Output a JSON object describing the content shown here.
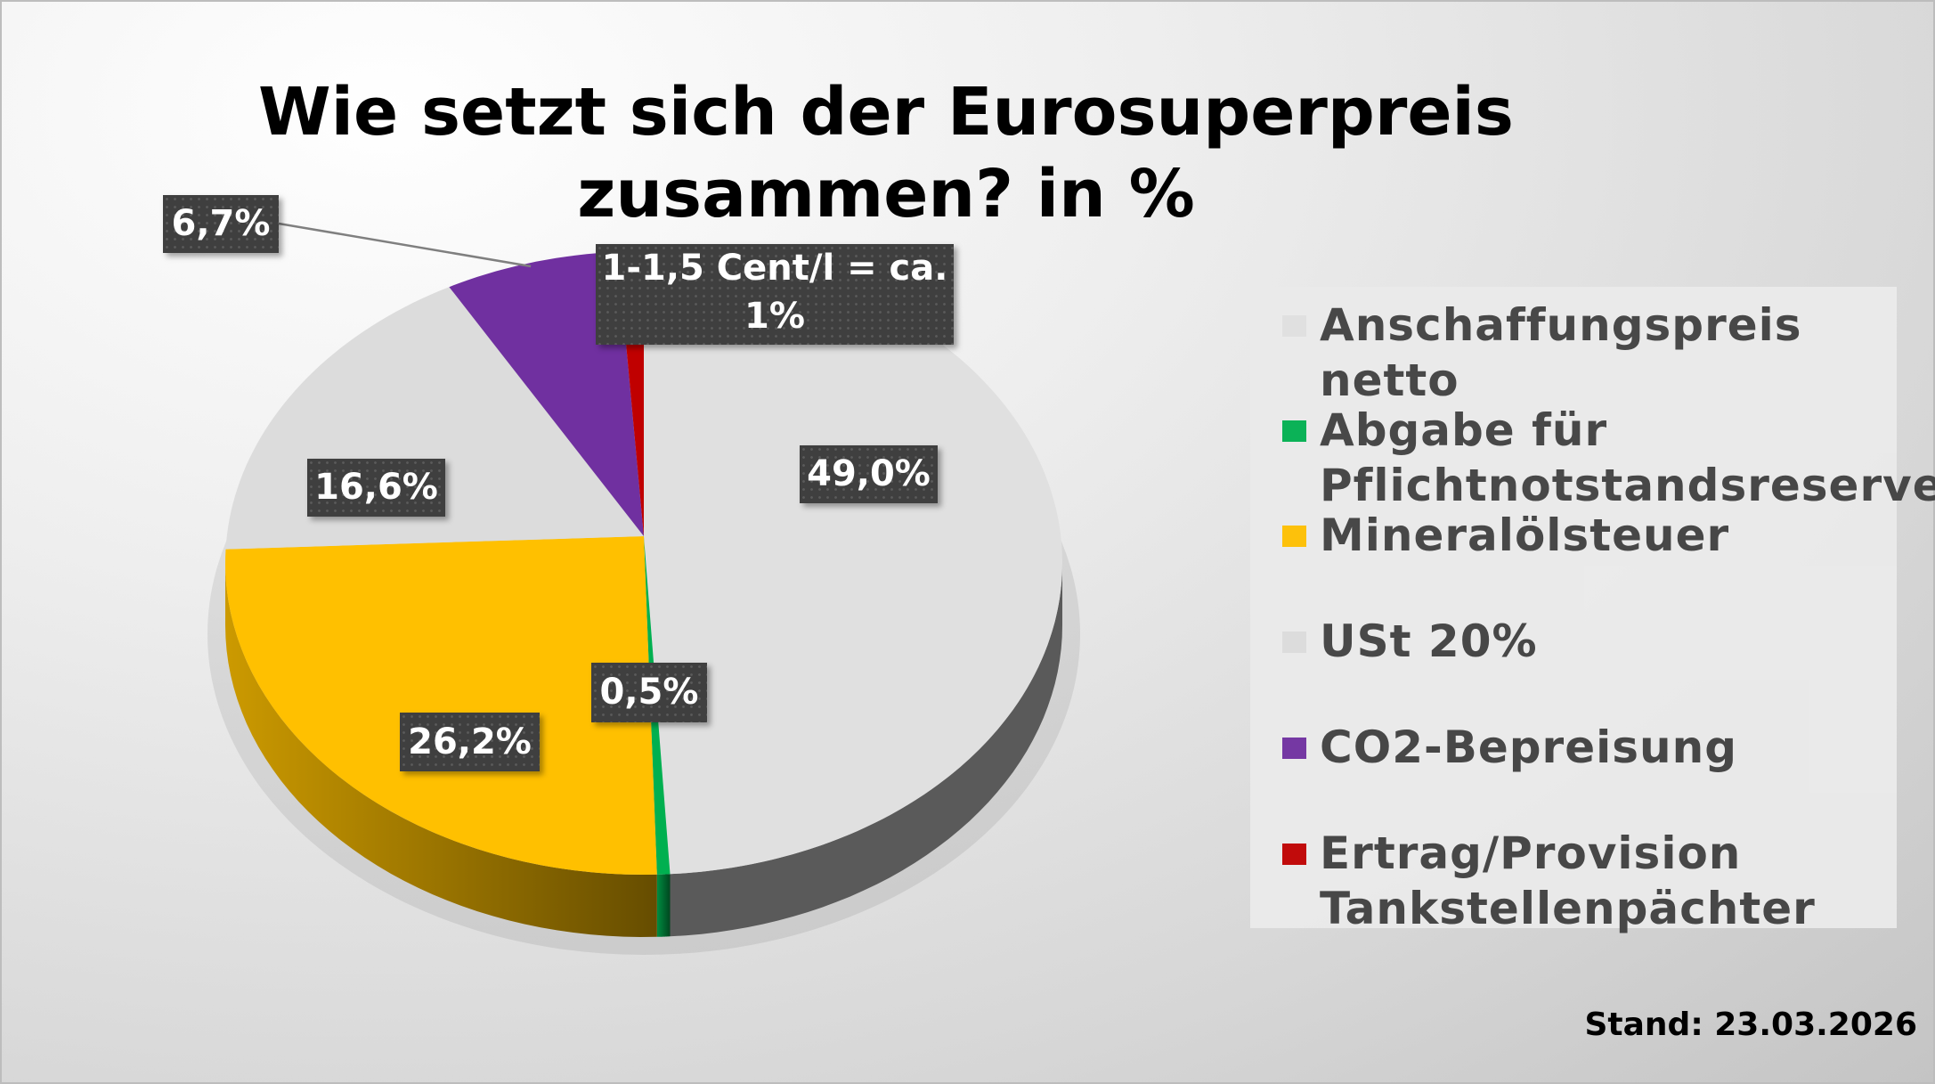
{
  "chart_data": {
    "type": "pie",
    "style": "3d",
    "title": "Wie setzt sich der Eurosuperpreis zusammen? in %",
    "legend_position": "right",
    "slices": [
      {
        "name": "Anschaffungspreis netto",
        "value": 49.0,
        "label": "49,0%",
        "color": "#e0e0e0"
      },
      {
        "name": "Abgabe für Pflichtnotstandsreserve",
        "value": 0.5,
        "label": "0,5%",
        "color": "#00b050"
      },
      {
        "name": "Mineralölsteuer",
        "value": 26.2,
        "label": "26,2%",
        "color": "#ffc000"
      },
      {
        "name": "USt 20%",
        "value": 16.6,
        "label": "16,6%",
        "color": "#dcdcdc"
      },
      {
        "name": "CO2-Bepreisung",
        "value": 6.7,
        "label": "6,7%",
        "color": "#7030a0"
      },
      {
        "name": "Ertrag/Provision Tankstellenpächter",
        "value": 1.0,
        "label": "1-1,5 Cent/l = ca. 1%",
        "color": "#c00000"
      }
    ],
    "footnote": "Stand: 23.03.2026"
  },
  "title_lines": [
    "Wie setzt sich der Eurosuperpreis",
    "zusammen? in %"
  ],
  "legend": [
    [
      "Anschaffungspreis netto"
    ],
    [
      "Abgabe für",
      "Pflichtnotstandsreserve"
    ],
    [
      "Mineralölsteuer"
    ],
    [
      "USt 20%"
    ],
    [
      "CO2-Bepreisung"
    ],
    [
      "Ertrag/Provision",
      "Tankstellenpächter"
    ]
  ],
  "red_label_lines": [
    "1-1,5 Cent/l = ca.",
    "1%"
  ]
}
